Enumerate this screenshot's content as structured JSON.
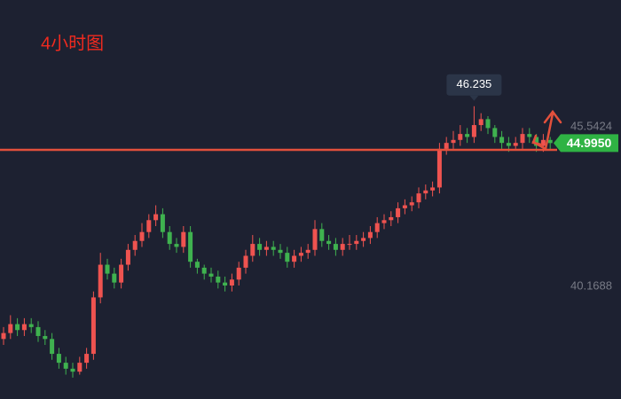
{
  "chart_data": {
    "type": "candlestick",
    "title": "4小时图",
    "open": [
      38.4,
      38.6,
      38.9,
      38.7,
      38.9,
      38.8,
      38.5,
      38.4,
      37.9,
      37.6,
      37.4,
      37.3,
      37.6,
      37.9,
      39.8,
      40.9,
      40.6,
      40.3,
      40.9,
      41.4,
      41.7,
      42.0,
      42.4,
      42.6,
      42.0,
      41.6,
      41.5,
      42.0,
      41.0,
      40.8,
      40.6,
      40.5,
      40.3,
      40.2,
      40.4,
      40.8,
      41.2,
      41.6,
      41.4,
      41.5,
      41.4,
      41.3,
      41.0,
      41.2,
      41.3,
      41.4,
      42.1,
      41.7,
      41.6,
      41.4,
      41.6,
      41.6,
      41.7,
      41.8,
      42.0,
      42.3,
      42.4,
      42.5,
      42.8,
      42.9,
      43.0,
      43.3,
      43.4,
      43.5,
      44.8,
      45.0,
      45.1,
      45.3,
      45.2,
      45.6,
      45.8,
      45.5,
      45.2,
      45.0,
      44.9,
      45.0,
      45.3,
      45.2,
      44.9,
      45.1
    ],
    "high": [
      38.8,
      39.2,
      39.1,
      39.1,
      39.1,
      39.0,
      38.7,
      38.6,
      38.1,
      37.8,
      37.6,
      37.8,
      38.1,
      40.0,
      41.3,
      41.1,
      40.8,
      41.1,
      41.6,
      41.9,
      42.3,
      42.6,
      42.9,
      42.8,
      42.2,
      41.8,
      42.2,
      42.2,
      41.1,
      40.9,
      40.8,
      40.7,
      40.5,
      40.6,
      41.0,
      41.4,
      41.9,
      41.8,
      41.7,
      41.7,
      41.6,
      41.5,
      41.4,
      41.5,
      41.6,
      42.4,
      42.3,
      41.9,
      41.8,
      41.8,
      41.9,
      41.9,
      42.0,
      42.2,
      42.5,
      42.6,
      42.7,
      43.0,
      43.1,
      43.2,
      43.5,
      43.6,
      43.7,
      45.0,
      45.2,
      45.4,
      45.6,
      45.5,
      46.235,
      46.0,
      45.9,
      45.6,
      45.4,
      45.2,
      45.2,
      45.5,
      45.5,
      45.3,
      45.3,
      45.2
    ],
    "low": [
      38.2,
      38.4,
      38.5,
      38.5,
      38.6,
      38.3,
      38.2,
      37.7,
      37.4,
      37.2,
      37.1,
      37.2,
      37.4,
      37.7,
      39.6,
      40.4,
      40.1,
      40.1,
      40.7,
      41.2,
      41.5,
      41.8,
      42.2,
      41.8,
      41.4,
      41.3,
      41.3,
      40.8,
      40.6,
      40.4,
      40.3,
      40.1,
      40.0,
      40.0,
      40.2,
      40.6,
      41.0,
      41.2,
      41.2,
      41.2,
      41.1,
      40.8,
      40.8,
      41.0,
      41.1,
      41.2,
      41.5,
      41.4,
      41.2,
      41.2,
      41.4,
      41.4,
      41.5,
      41.6,
      41.8,
      42.1,
      42.2,
      42.3,
      42.6,
      42.7,
      42.8,
      43.1,
      43.2,
      43.3,
      44.6,
      44.8,
      44.9,
      45.0,
      45.0,
      45.4,
      45.3,
      45.0,
      44.8,
      44.7,
      44.8,
      44.8,
      45.0,
      44.7,
      44.7,
      44.8
    ],
    "close": [
      38.6,
      38.9,
      38.7,
      38.9,
      38.8,
      38.5,
      38.4,
      37.9,
      37.6,
      37.4,
      37.3,
      37.6,
      37.9,
      39.8,
      40.9,
      40.6,
      40.3,
      40.9,
      41.4,
      41.7,
      42.0,
      42.4,
      42.6,
      42.0,
      41.6,
      41.5,
      42.0,
      41.0,
      40.8,
      40.6,
      40.5,
      40.3,
      40.2,
      40.4,
      40.8,
      41.2,
      41.6,
      41.4,
      41.5,
      41.4,
      41.3,
      41.0,
      41.2,
      41.3,
      41.4,
      42.1,
      41.7,
      41.6,
      41.4,
      41.6,
      41.6,
      41.7,
      41.8,
      42.0,
      42.3,
      42.4,
      42.5,
      42.8,
      42.9,
      43.0,
      43.3,
      43.4,
      43.5,
      44.8,
      45.0,
      45.1,
      45.3,
      45.2,
      45.6,
      45.8,
      45.5,
      45.2,
      45.0,
      44.9,
      45.0,
      45.3,
      45.2,
      44.9,
      45.1,
      44.995
    ],
    "up_color": "#ef5350",
    "down_color": "#3fb24f",
    "ylim": [
      36.38,
      49.81
    ],
    "yticks": [
      40.1688,
      45.5424
    ],
    "peak_label": 46.235,
    "last_price": {
      "value": 44.995,
      "label": "44.9950"
    },
    "last_price_color": "#2fb344"
  }
}
